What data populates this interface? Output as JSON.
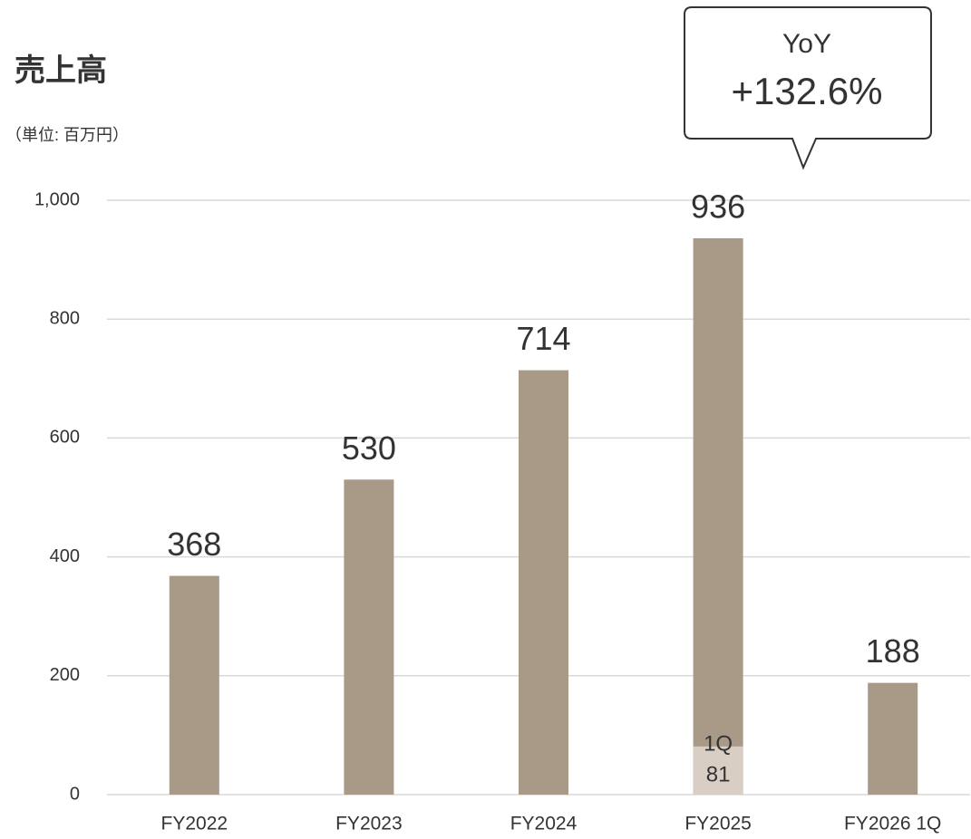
{
  "chart_data": {
    "type": "bar",
    "title": "売上高",
    "subtitle": "（単位: 百万円）",
    "categories": [
      "FY2022",
      "FY2023",
      "FY2024",
      "FY2025",
      "FY2026 1Q"
    ],
    "series": [
      {
        "name": "売上高",
        "color": "#a89a86",
        "values": [
          368,
          530,
          714,
          936,
          188
        ]
      },
      {
        "name": "1Q",
        "color": "#d8cec3",
        "values": [
          null,
          null,
          null,
          81,
          null
        ],
        "overlay": true
      }
    ],
    "ylim": [
      0,
      1000
    ],
    "yticks": [
      0,
      200,
      400,
      600,
      800,
      {
        "value": 1000,
        "label": "1,000"
      }
    ],
    "grid": true,
    "annotations": [
      "YoY",
      "+132.6%"
    ]
  }
}
